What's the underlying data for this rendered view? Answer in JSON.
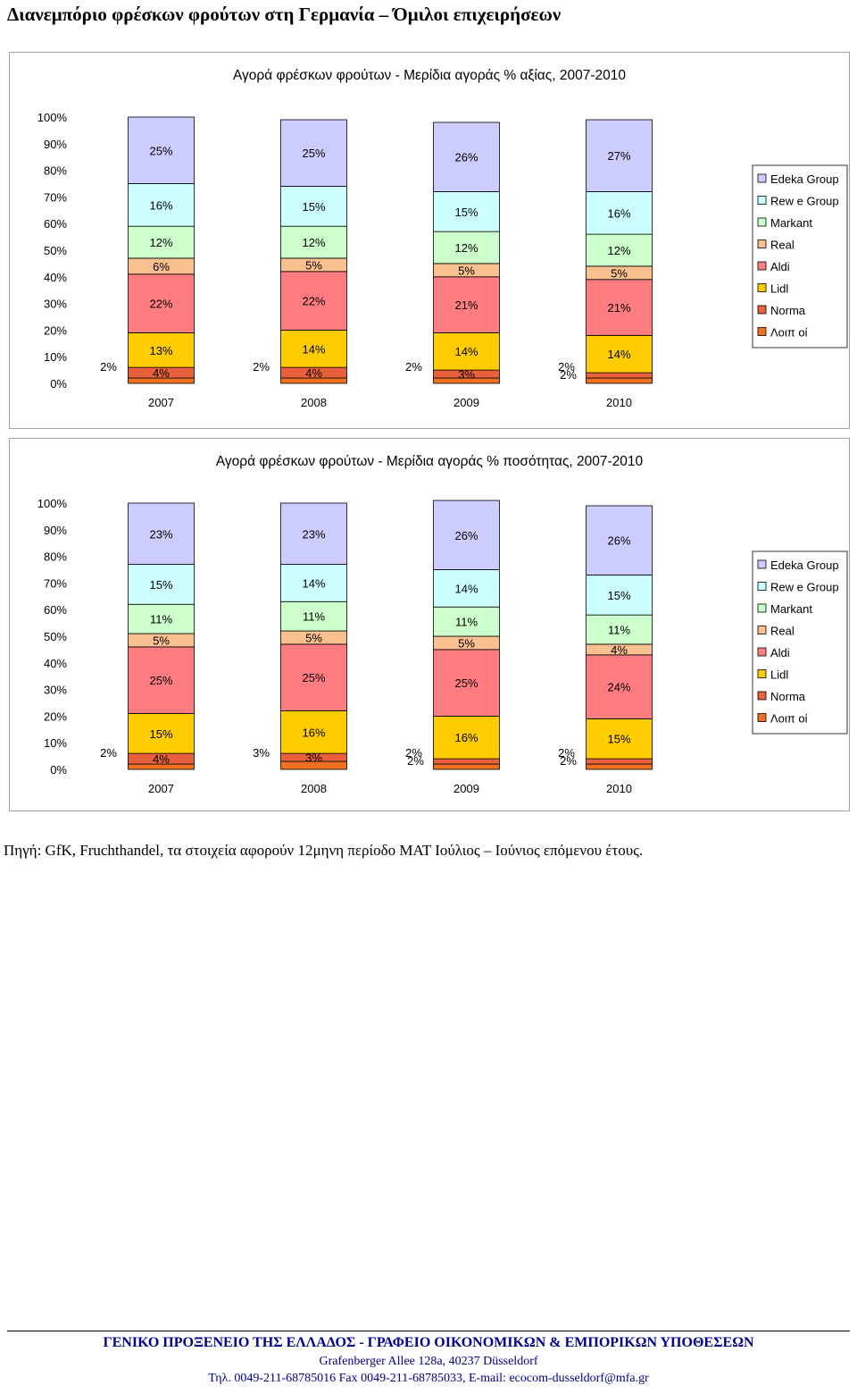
{
  "page": {
    "title": "Διανεμπόριο φρέσκων φρούτων στη Γερμανία – Όμιλοι επιχειρήσεων",
    "source": "Πηγή: GfK, Fruchthandel, τα στοιχεία αφορούν 12μηνη περίοδο MAT Ιούλιος – Ιούνιος επόμενου έτους.",
    "footer": {
      "title": "ΓΕΝΙΚΟ ΠΡΟΞΕΝΕΙΟ ΤΗΣ ΕΛΛΑΔΟΣ - ΓΡΑΦΕΙΟ ΟΙΚΟΝΟΜΙΚΩΝ & ΕΜΠΟΡΙΚΩΝ ΥΠΟΘΕΣΕΩΝ",
      "address": "Grafenberger Allee 128a, 40237 Düsseldorf",
      "contact": "Τηλ. 0049-211-68785016 Fax 0049-211-68785033, E-mail: ecocom-dusseldorf@mfa.gr"
    }
  },
  "chart_data": [
    {
      "type": "bar",
      "stacked": true,
      "title": "Αγορά φρέσκων φρούτων - Μερίδια αγοράς % αξίας, 2007-2010",
      "categories": [
        "2007",
        "2008",
        "2009",
        "2010"
      ],
      "yticks": [
        "0%",
        "10%",
        "20%",
        "30%",
        "40%",
        "50%",
        "60%",
        "70%",
        "80%",
        "90%",
        "100%"
      ],
      "ylim": [
        0,
        100
      ],
      "legend_position": "right",
      "series": [
        {
          "name": "Λοιπ οί",
          "color": "#f07020",
          "values": [
            2,
            2,
            2,
            2
          ]
        },
        {
          "name": "Norma",
          "color": "#e8603c",
          "values": [
            4,
            4,
            3,
            2
          ]
        },
        {
          "name": "Lidl",
          "color": "#ffcc00",
          "values": [
            13,
            14,
            14,
            14
          ]
        },
        {
          "name": "Aldi",
          "color": "#ff7c80",
          "values": [
            22,
            22,
            21,
            21
          ]
        },
        {
          "name": "Real",
          "color": "#fac090",
          "values": [
            6,
            5,
            5,
            5
          ]
        },
        {
          "name": "Markant",
          "color": "#ccffcc",
          "values": [
            12,
            12,
            12,
            12
          ]
        },
        {
          "name": "Rew e Group",
          "color": "#ccffff",
          "values": [
            16,
            15,
            15,
            16
          ]
        },
        {
          "name": "Edeka Group",
          "color": "#ccccff",
          "values": [
            25,
            25,
            26,
            27
          ]
        }
      ]
    },
    {
      "type": "bar",
      "stacked": true,
      "title": "Αγορά φρέσκων φρούτων - Μερίδια αγοράς % ποσότητας, 2007-2010",
      "categories": [
        "2007",
        "2008",
        "2009",
        "2010"
      ],
      "yticks": [
        "0%",
        "10%",
        "20%",
        "30%",
        "40%",
        "50%",
        "60%",
        "70%",
        "80%",
        "90%",
        "100%"
      ],
      "ylim": [
        0,
        100
      ],
      "legend_position": "right",
      "series": [
        {
          "name": "Λοιπ οί",
          "color": "#f07020",
          "values": [
            2,
            3,
            2,
            2
          ]
        },
        {
          "name": "Norma",
          "color": "#e8603c",
          "values": [
            4,
            3,
            2,
            2
          ]
        },
        {
          "name": "Lidl",
          "color": "#ffcc00",
          "values": [
            15,
            16,
            16,
            15
          ]
        },
        {
          "name": "Aldi",
          "color": "#ff7c80",
          "values": [
            25,
            25,
            25,
            24
          ]
        },
        {
          "name": "Real",
          "color": "#fac090",
          "values": [
            5,
            5,
            5,
            4
          ]
        },
        {
          "name": "Markant",
          "color": "#ccffcc",
          "values": [
            11,
            11,
            11,
            11
          ]
        },
        {
          "name": "Rew e Group",
          "color": "#ccffff",
          "values": [
            15,
            14,
            14,
            15
          ]
        },
        {
          "name": "Edeka Group",
          "color": "#ccccff",
          "values": [
            23,
            23,
            26,
            26
          ]
        }
      ]
    }
  ]
}
